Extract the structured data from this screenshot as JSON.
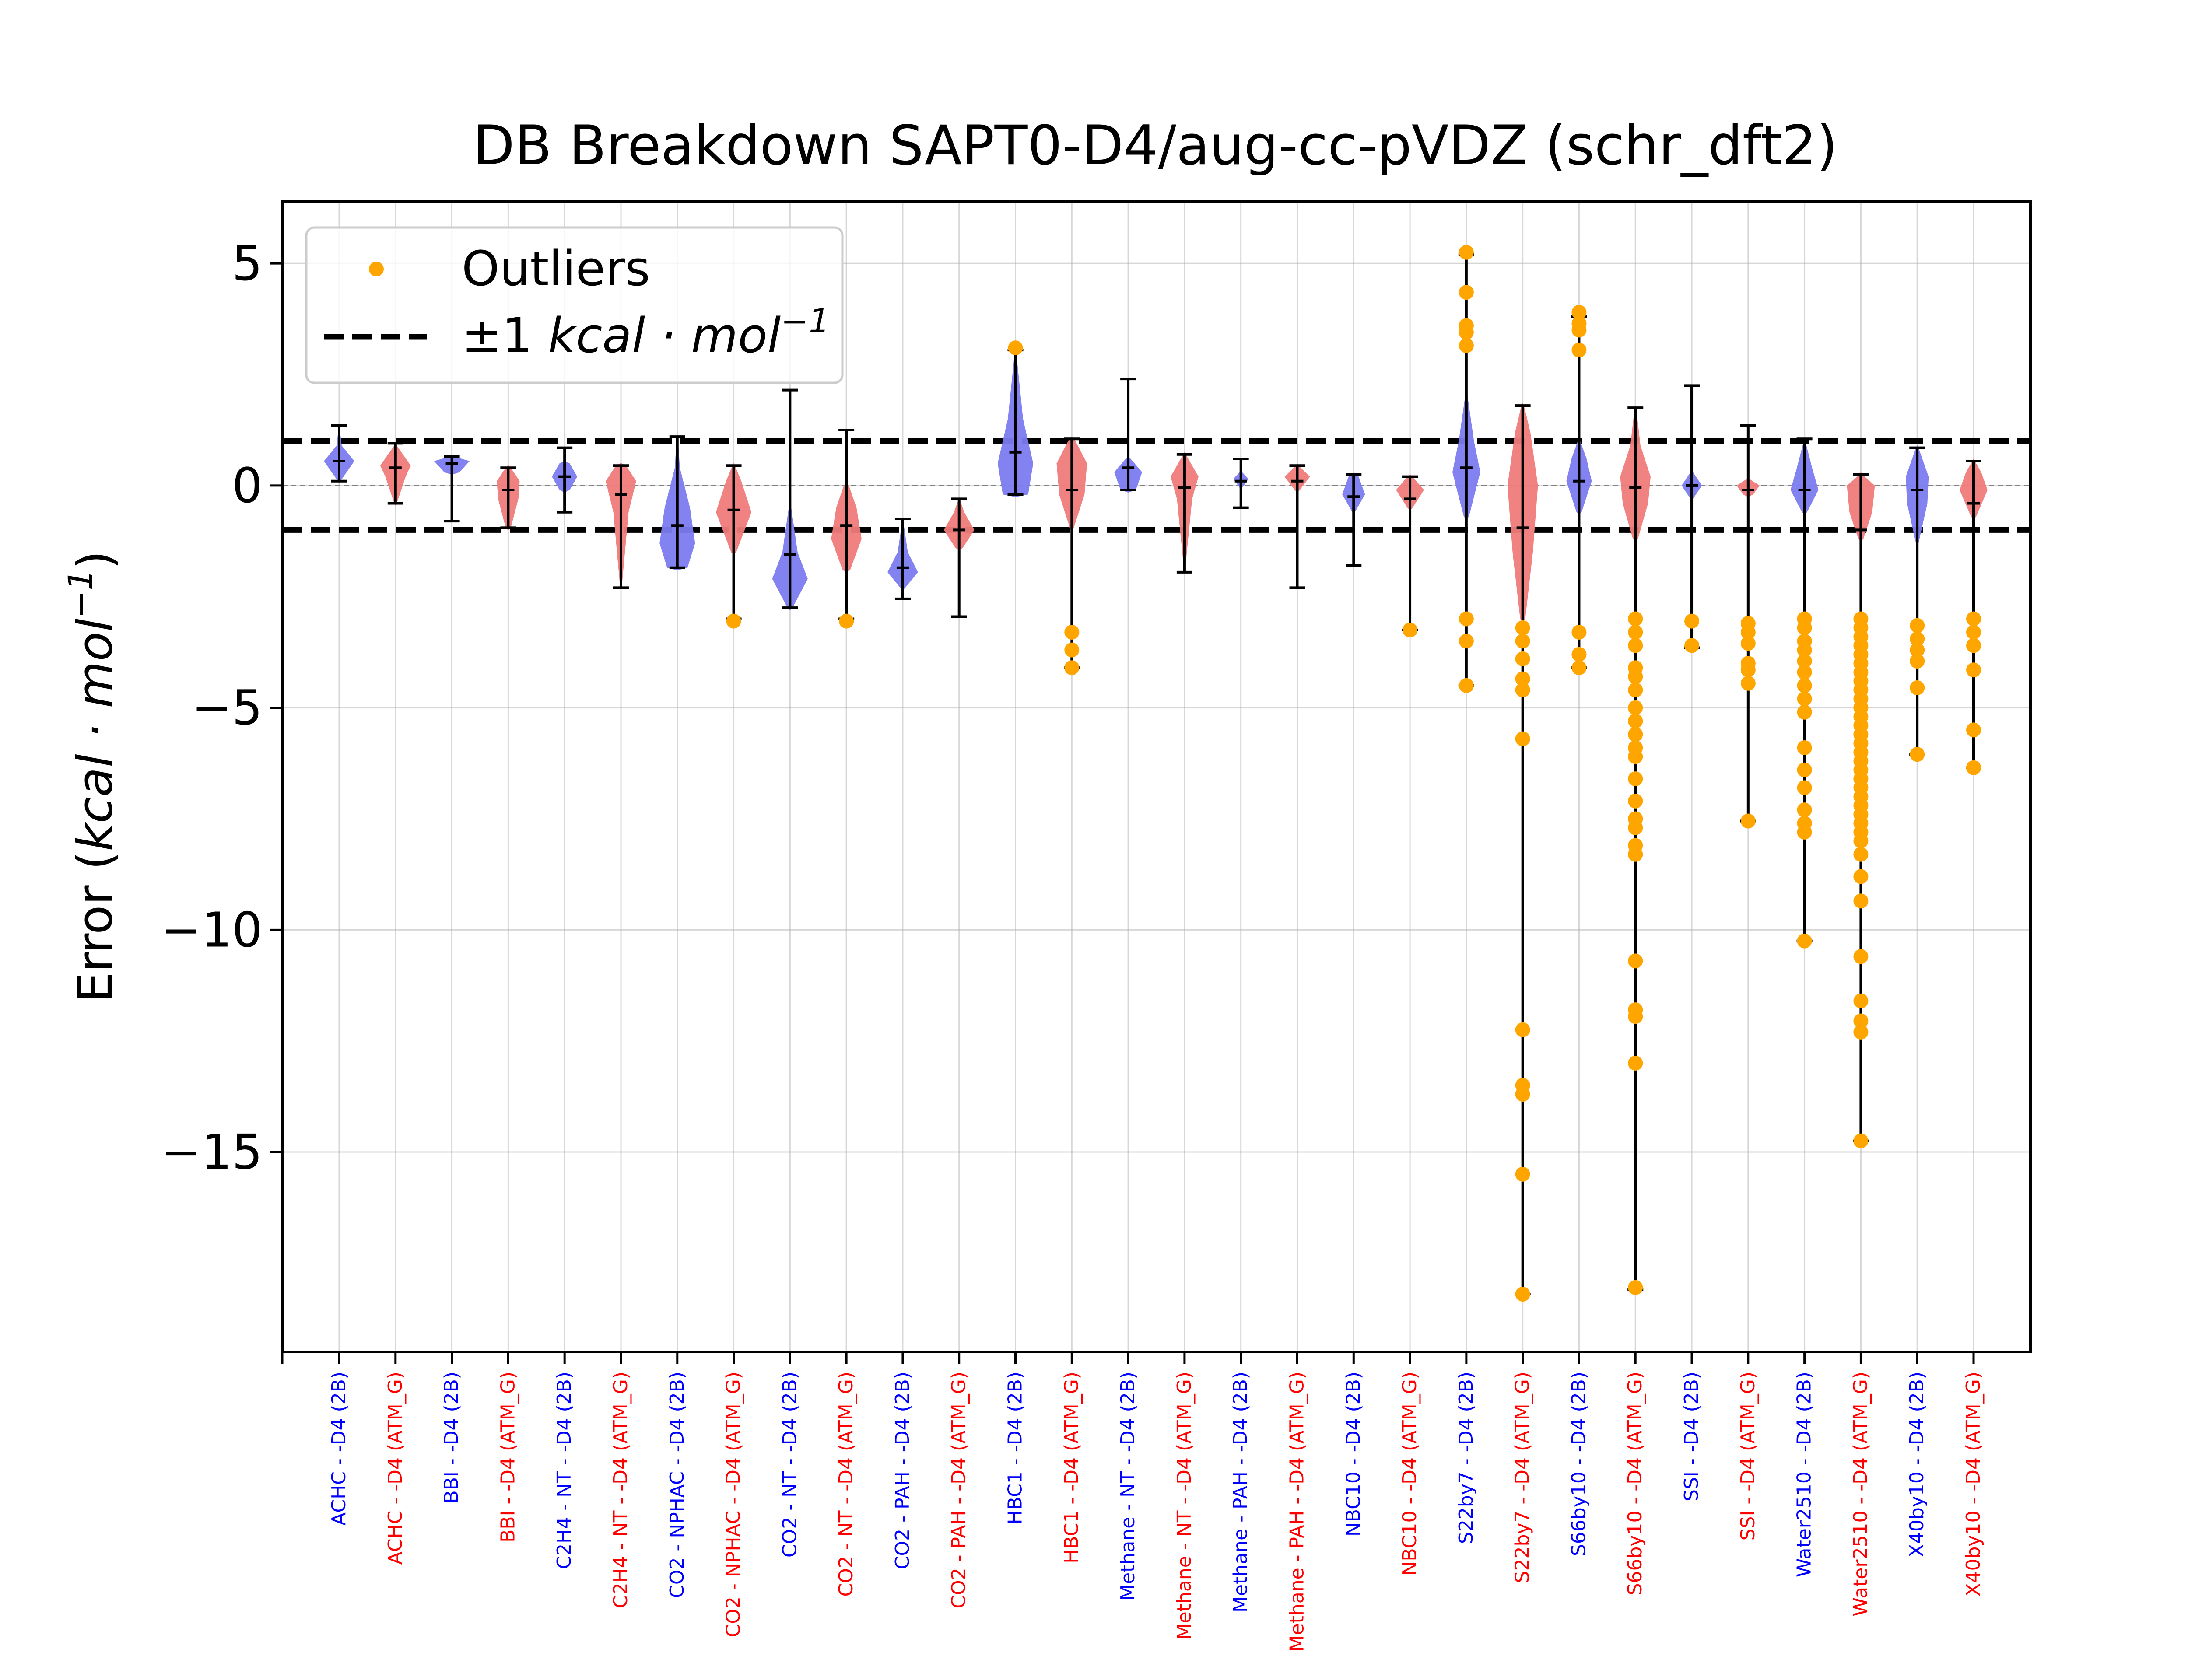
{
  "chart_data": {
    "type": "violin",
    "title": "DB Breakdown SAPT0-D4/aug-cc-pVDZ (schr_dft2)",
    "xlabel": "",
    "ylabel": "Error (kcal·mol⁻¹)",
    "ylabel_parts": {
      "prefix": "Error (",
      "unit_main": "kcal · mol",
      "unit_exp": "−1",
      "suffix": ")"
    },
    "ylim": [
      -19.5,
      6.4
    ],
    "yticks": [
      5,
      0,
      -5,
      -10,
      -15
    ],
    "ytick_labels": [
      "5",
      "0",
      "−5",
      "−10",
      "−15"
    ],
    "grid": true,
    "legend": {
      "placement": "top-left",
      "outliers_label": "Outliers",
      "band_label_prefix": "±1 ",
      "band_label_unit": "kcal · mol",
      "band_label_exp": "−1"
    },
    "reference_lines": [
      1,
      -1
    ],
    "colors": {
      "2B": "#0000ff",
      "ATM_G": "#ff0000",
      "violin_2B": "#7b7bef",
      "violin_ATM": "#f07b7b",
      "outlier": "#ffa500"
    },
    "categories": [
      {
        "label": "ACHC - -D4 (2B)",
        "kind": "2B",
        "min": 0.1,
        "max": 1.35,
        "median": 0.55,
        "violin": [
          [
            0.1,
            0.05
          ],
          [
            0.55,
            0.6
          ],
          [
            0.9,
            0.1
          ],
          [
            1.3,
            0.02
          ]
        ],
        "outliers": []
      },
      {
        "label": "ACHC - -D4 (ATM_G)",
        "kind": "ATM_G",
        "min": -0.4,
        "max": 0.95,
        "median": 0.4,
        "violin": [
          [
            -0.4,
            0.05
          ],
          [
            0.2,
            0.4
          ],
          [
            0.45,
            0.6
          ],
          [
            0.9,
            0.05
          ]
        ],
        "outliers": []
      },
      {
        "label": "BBI - -D4 (2B)",
        "kind": "2B",
        "min": -0.8,
        "max": 0.65,
        "median": 0.5,
        "violin": [
          [
            0.3,
            0.3
          ],
          [
            0.55,
            0.7
          ],
          [
            0.65,
            0.1
          ]
        ],
        "outliers": []
      },
      {
        "label": "BBI - -D4 (ATM_G)",
        "kind": "ATM_G",
        "min": -0.95,
        "max": 0.4,
        "median": -0.1,
        "violin": [
          [
            -0.95,
            0.1
          ],
          [
            -0.3,
            0.4
          ],
          [
            0.1,
            0.45
          ],
          [
            0.4,
            0.1
          ]
        ],
        "outliers": []
      },
      {
        "label": "C2H4 - NT - -D4 (2B)",
        "kind": "2B",
        "min": -0.6,
        "max": 0.85,
        "median": 0.2,
        "violin": [
          [
            -0.1,
            0.2
          ],
          [
            0.2,
            0.5
          ],
          [
            0.5,
            0.2
          ]
        ],
        "outliers": []
      },
      {
        "label": "C2H4 - NT - -D4 (ATM_G)",
        "kind": "ATM_G",
        "min": -2.3,
        "max": 0.45,
        "median": -0.2,
        "violin": [
          [
            -2.3,
            0.03
          ],
          [
            -0.6,
            0.3
          ],
          [
            0.1,
            0.6
          ],
          [
            0.45,
            0.2
          ]
        ],
        "outliers": []
      },
      {
        "label": "CO2 - NPHAC - -D4 (2B)",
        "kind": "2B",
        "min": -1.85,
        "max": 1.1,
        "median": -0.9,
        "violin": [
          [
            -1.85,
            0.4
          ],
          [
            -1.3,
            0.7
          ],
          [
            -0.5,
            0.5
          ],
          [
            0.4,
            0.1
          ],
          [
            1.1,
            0.02
          ]
        ],
        "outliers": []
      },
      {
        "label": "CO2 - NPHAC - -D4 (ATM_G)",
        "kind": "ATM_G",
        "min": -3.0,
        "max": 0.45,
        "median": -0.55,
        "violin": [
          [
            -1.5,
            0.1
          ],
          [
            -0.6,
            0.7
          ],
          [
            0.1,
            0.3
          ],
          [
            0.45,
            0.05
          ]
        ],
        "outliers": [
          -3.05
        ]
      },
      {
        "label": "CO2 - NT - -D4 (2B)",
        "kind": "2B",
        "min": -2.75,
        "max": 2.15,
        "median": -1.55,
        "violin": [
          [
            -2.75,
            0.1
          ],
          [
            -2.1,
            0.7
          ],
          [
            -1.5,
            0.3
          ],
          [
            -0.5,
            0.05
          ],
          [
            2.1,
            0.01
          ]
        ],
        "outliers": []
      },
      {
        "label": "CO2 - NT - -D4 (ATM_G)",
        "kind": "ATM_G",
        "min": -3.0,
        "max": 1.25,
        "median": -0.9,
        "violin": [
          [
            -1.9,
            0.15
          ],
          [
            -1.2,
            0.6
          ],
          [
            -0.5,
            0.4
          ],
          [
            0.0,
            0.1
          ]
        ],
        "outliers": [
          -3.05
        ]
      },
      {
        "label": "CO2 - PAH - -D4 (2B)",
        "kind": "2B",
        "min": -2.55,
        "max": -0.75,
        "median": -1.85,
        "violin": [
          [
            -2.3,
            0.1
          ],
          [
            -1.95,
            0.6
          ],
          [
            -1.5,
            0.2
          ],
          [
            -0.8,
            0.02
          ]
        ],
        "outliers": []
      },
      {
        "label": "CO2 - PAH - -D4 (ATM_G)",
        "kind": "ATM_G",
        "min": -2.95,
        "max": -0.3,
        "median": -1.0,
        "violin": [
          [
            -1.4,
            0.15
          ],
          [
            -1.0,
            0.6
          ],
          [
            -0.6,
            0.2
          ],
          [
            -0.3,
            0.02
          ]
        ],
        "outliers": []
      },
      {
        "label": "HBC1 - -D4 (2B)",
        "kind": "2B",
        "min": -0.2,
        "max": 3.05,
        "median": 0.75,
        "violin": [
          [
            -0.2,
            0.5
          ],
          [
            0.5,
            0.7
          ],
          [
            1.5,
            0.3
          ],
          [
            3.0,
            0.03
          ]
        ],
        "outliers": [
          3.1
        ]
      },
      {
        "label": "HBC1 - -D4 (ATM_G)",
        "kind": "ATM_G",
        "min": -4.1,
        "max": 1.05,
        "median": -0.1,
        "violin": [
          [
            -1.0,
            0.05
          ],
          [
            -0.2,
            0.5
          ],
          [
            0.5,
            0.6
          ],
          [
            1.05,
            0.1
          ]
        ],
        "outliers": [
          -3.3,
          -3.7,
          -4.1
        ]
      },
      {
        "label": "Methane - NT - -D4 (2B)",
        "kind": "2B",
        "min": -0.1,
        "max": 2.4,
        "median": 0.4,
        "violin": [
          [
            -0.1,
            0.3
          ],
          [
            0.3,
            0.55
          ],
          [
            0.6,
            0.1
          ]
        ],
        "outliers": []
      },
      {
        "label": "Methane - NT - -D4 (ATM_G)",
        "kind": "ATM_G",
        "min": -1.95,
        "max": 0.7,
        "median": -0.05,
        "violin": [
          [
            -1.9,
            0.02
          ],
          [
            -0.3,
            0.3
          ],
          [
            0.2,
            0.55
          ],
          [
            0.7,
            0.05
          ]
        ],
        "outliers": []
      },
      {
        "label": "Methane - PAH - -D4 (2B)",
        "kind": "2B",
        "min": -0.5,
        "max": 0.6,
        "median": 0.1,
        "violin": [
          [
            -0.05,
            0.05
          ],
          [
            0.15,
            0.3
          ],
          [
            0.3,
            0.05
          ]
        ],
        "outliers": []
      },
      {
        "label": "Methane - PAH - -D4 (ATM_G)",
        "kind": "ATM_G",
        "min": -2.3,
        "max": 0.45,
        "median": 0.1,
        "violin": [
          [
            -0.1,
            0.1
          ],
          [
            0.2,
            0.5
          ],
          [
            0.45,
            0.05
          ]
        ],
        "outliers": []
      },
      {
        "label": "NBC10 - -D4 (2B)",
        "kind": "2B",
        "min": -1.8,
        "max": 0.25,
        "median": -0.25,
        "violin": [
          [
            -0.6,
            0.05
          ],
          [
            -0.2,
            0.45
          ],
          [
            0.2,
            0.2
          ]
        ],
        "outliers": []
      },
      {
        "label": "NBC10 - -D4 (ATM_G)",
        "kind": "ATM_G",
        "min": -3.25,
        "max": 0.2,
        "median": -0.3,
        "violin": [
          [
            -0.5,
            0.1
          ],
          [
            -0.1,
            0.55
          ],
          [
            0.2,
            0.1
          ]
        ],
        "outliers": [
          -3.25
        ]
      },
      {
        "label": "S22by7 - -D4 (2B)",
        "kind": "2B",
        "min": -4.5,
        "max": 5.2,
        "median": 0.4,
        "violin": [
          [
            -0.7,
            0.1
          ],
          [
            0.3,
            0.55
          ],
          [
            1.0,
            0.3
          ],
          [
            2.0,
            0.05
          ]
        ],
        "outliers": [
          5.25,
          4.35,
          3.6,
          3.45,
          3.15,
          -3.0,
          -3.5,
          -4.5
        ]
      },
      {
        "label": "S22by7 - -D4 (ATM_G)",
        "kind": "ATM_G",
        "min": -18.2,
        "max": 1.8,
        "median": -0.95,
        "violin": [
          [
            -3.0,
            0.1
          ],
          [
            -1.5,
            0.4
          ],
          [
            0.0,
            0.6
          ],
          [
            1.2,
            0.3
          ],
          [
            1.8,
            0.05
          ]
        ],
        "outliers": [
          -3.2,
          -3.5,
          -3.9,
          -4.35,
          -4.6,
          -5.7,
          -12.25,
          -13.5,
          -13.7,
          -15.5,
          -18.2
        ]
      },
      {
        "label": "S66by10 - -D4 (2B)",
        "kind": "2B",
        "min": -4.1,
        "max": 3.8,
        "median": 0.1,
        "violin": [
          [
            -0.6,
            0.1
          ],
          [
            0.1,
            0.5
          ],
          [
            0.6,
            0.3
          ],
          [
            1.0,
            0.05
          ]
        ],
        "outliers": [
          3.9,
          3.65,
          3.5,
          3.05,
          -3.3,
          -3.8,
          -4.1
        ]
      },
      {
        "label": "S66by10 - -D4 (ATM_G)",
        "kind": "ATM_G",
        "min": -18.1,
        "max": 1.75,
        "median": -0.05,
        "violin": [
          [
            -1.2,
            0.1
          ],
          [
            -0.4,
            0.5
          ],
          [
            0.2,
            0.6
          ],
          [
            0.9,
            0.2
          ],
          [
            1.75,
            0.03
          ]
        ],
        "outliers": [
          -3.0,
          -3.3,
          -3.6,
          -4.1,
          -4.3,
          -4.6,
          -5.0,
          -5.3,
          -5.6,
          -5.9,
          -6.1,
          -6.6,
          -7.1,
          -7.5,
          -7.7,
          -8.1,
          -8.3,
          -10.7,
          -11.8,
          -11.95,
          -13.0,
          -18.05
        ]
      },
      {
        "label": "SSI - -D4 (2B)",
        "kind": "2B",
        "min": -3.65,
        "max": 2.25,
        "median": 0.0,
        "violin": [
          [
            -0.3,
            0.05
          ],
          [
            0.0,
            0.4
          ],
          [
            0.3,
            0.05
          ]
        ],
        "outliers": [
          -3.05,
          -3.6
        ]
      },
      {
        "label": "SSI - -D4 (ATM_G)",
        "kind": "ATM_G",
        "min": -7.55,
        "max": 1.35,
        "median": -0.1,
        "violin": [
          [
            -0.2,
            0.2
          ],
          [
            0.0,
            0.45
          ],
          [
            0.15,
            0.05
          ]
        ],
        "outliers": [
          -3.1,
          -3.3,
          -3.55,
          -4.0,
          -4.15,
          -4.45,
          -7.55
        ]
      },
      {
        "label": "Water2510 - -D4 (2B)",
        "kind": "2B",
        "min": -10.25,
        "max": 1.05,
        "median": -0.1,
        "violin": [
          [
            -0.6,
            0.1
          ],
          [
            -0.1,
            0.55
          ],
          [
            0.4,
            0.3
          ],
          [
            1.0,
            0.03
          ]
        ],
        "outliers": [
          -3.0,
          -3.2,
          -3.5,
          -3.7,
          -3.95,
          -4.2,
          -4.5,
          -4.8,
          -5.1,
          -5.9,
          -6.4,
          -6.8,
          -7.3,
          -7.6,
          -7.8,
          -10.25
        ]
      },
      {
        "label": "Water2510 - -D4 (ATM_G)",
        "kind": "ATM_G",
        "min": -14.75,
        "max": 0.25,
        "median": -1.0,
        "violin": [
          [
            -1.2,
            0.1
          ],
          [
            -0.6,
            0.45
          ],
          [
            0.0,
            0.55
          ],
          [
            0.25,
            0.05
          ]
        ],
        "outliers": [
          -3.0,
          -3.2,
          -3.4,
          -3.6,
          -3.8,
          -4.0,
          -4.2,
          -4.4,
          -4.6,
          -4.8,
          -5.0,
          -5.2,
          -5.4,
          -5.6,
          -5.8,
          -6.0,
          -6.2,
          -6.4,
          -6.6,
          -6.8,
          -7.0,
          -7.2,
          -7.4,
          -7.6,
          -7.8,
          -8.0,
          -8.3,
          -8.8,
          -9.35,
          -10.6,
          -11.6,
          -12.05,
          -12.3,
          -14.75
        ]
      },
      {
        "label": "X40by10 - -D4 (2B)",
        "kind": "2B",
        "min": -6.05,
        "max": 0.85,
        "median": -0.1,
        "violin": [
          [
            -1.3,
            0.05
          ],
          [
            -0.4,
            0.4
          ],
          [
            0.2,
            0.45
          ],
          [
            0.85,
            0.05
          ]
        ],
        "outliers": [
          -3.15,
          -3.45,
          -3.7,
          -3.95,
          -4.55,
          -6.05
        ]
      },
      {
        "label": "X40by10 - -D4 (ATM_G)",
        "kind": "ATM_G",
        "min": -6.35,
        "max": 0.55,
        "median": -0.4,
        "violin": [
          [
            -0.7,
            0.1
          ],
          [
            -0.1,
            0.55
          ],
          [
            0.3,
            0.3
          ],
          [
            0.55,
            0.05
          ]
        ],
        "outliers": [
          -3.0,
          -3.3,
          -3.6,
          -4.15,
          -5.5,
          -6.35
        ]
      }
    ]
  }
}
